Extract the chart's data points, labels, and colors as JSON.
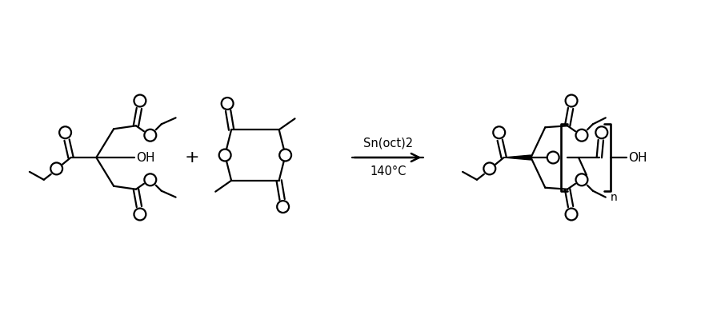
{
  "bg_color": "#ffffff",
  "line_color": "#000000",
  "line_width": 1.6,
  "fig_width": 8.86,
  "fig_height": 3.94,
  "dpi": 100,
  "arrow_text_line1": "Sn(oct)2",
  "arrow_text_line2": "140°C",
  "plus_sign": "+",
  "oh_label": "OH",
  "bracket_n": "n"
}
